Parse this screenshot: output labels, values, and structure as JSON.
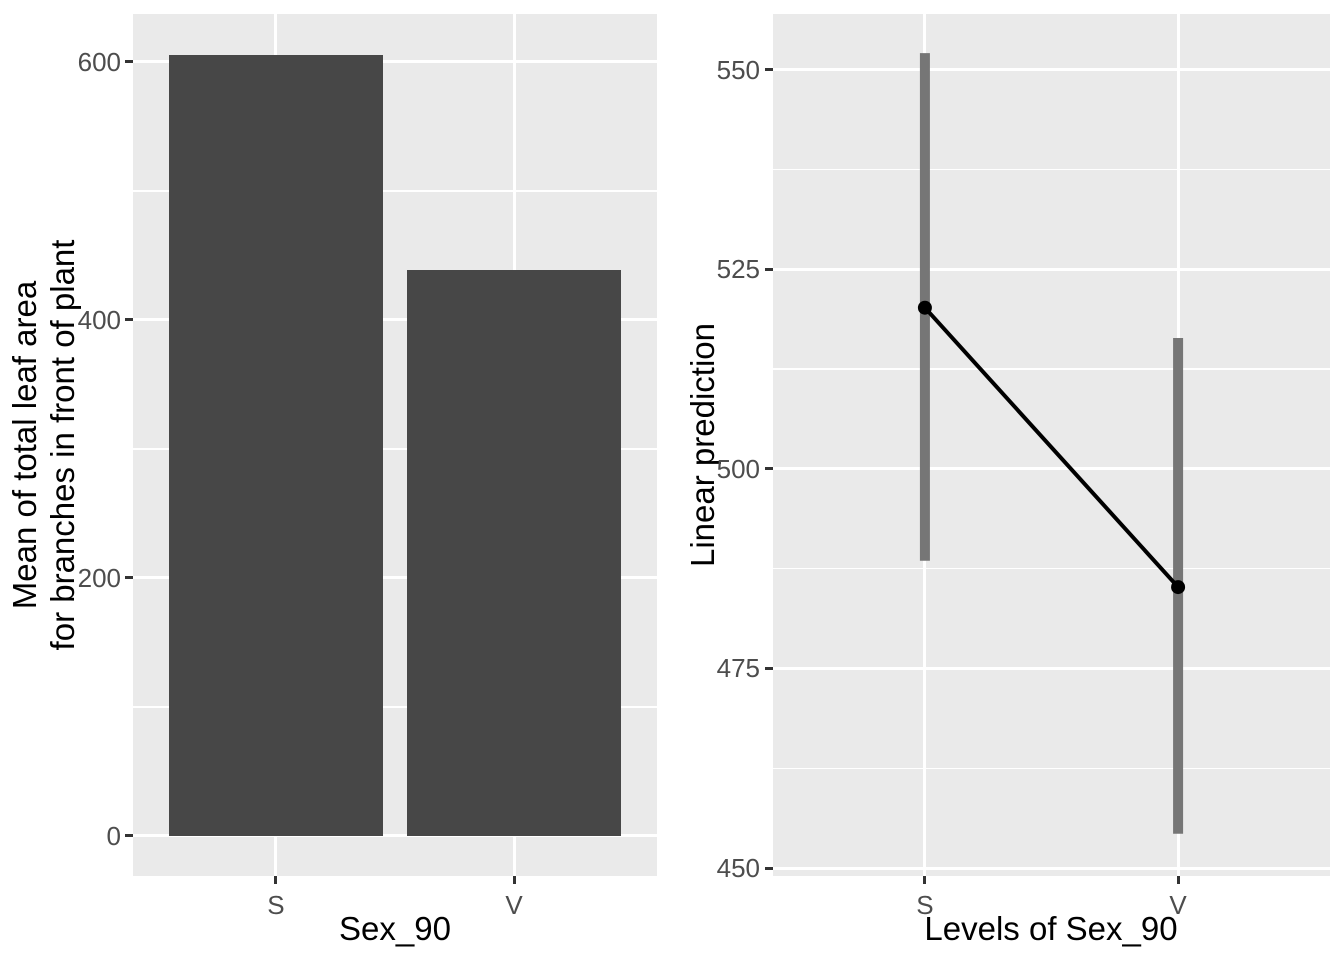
{
  "page": {
    "background": "#ffffff",
    "description_left": "bar chart of mean total leaf area by Sex_90",
    "description_right": "predictive margins of Sex_90 with 95% CIs"
  },
  "colors": {
    "panel_background": "#EAEAEA",
    "grid_major": "#FFFFFF",
    "grid_minor": "#FFFFFF",
    "bar_fill": "#474747",
    "ci_bar": "#767676",
    "point": "#000000",
    "trend_line": "#000000",
    "tick_mark": "#333333",
    "tick_label": "#4D4D4D",
    "axis_title": "#000000"
  },
  "chart_data": [
    {
      "type": "bar",
      "title": "",
      "xlabel": "Sex_90",
      "ylabel": "Mean of total leaf area\nfor branches in front of plant",
      "categories": [
        "S",
        "V"
      ],
      "values": [
        605,
        439
      ],
      "yticks": [
        0,
        200,
        400,
        600
      ],
      "yticks_minor": [
        100,
        300,
        500
      ],
      "ylim": [
        -31,
        637
      ],
      "grid": "on",
      "legend": "none",
      "bar_width_fraction": 0.9
    },
    {
      "type": "line",
      "title": "",
      "xlabel": "Levels of Sex_90",
      "ylabel": "Linear prediction",
      "categories": [
        "S",
        "V"
      ],
      "series": [
        {
          "name": "Linear prediction",
          "values": [
            520.2,
            485.2
          ],
          "ci_low": [
            488.5,
            454.3
          ],
          "ci_high": [
            552.1,
            516.4
          ]
        }
      ],
      "yticks": [
        450,
        475,
        500,
        525,
        550
      ],
      "yticks_minor": [
        462.5,
        487.5,
        512.5,
        537.5
      ],
      "ylim": [
        449,
        557
      ],
      "grid": "on",
      "legend": "none",
      "marker": "point-with-vertical-ci"
    }
  ]
}
